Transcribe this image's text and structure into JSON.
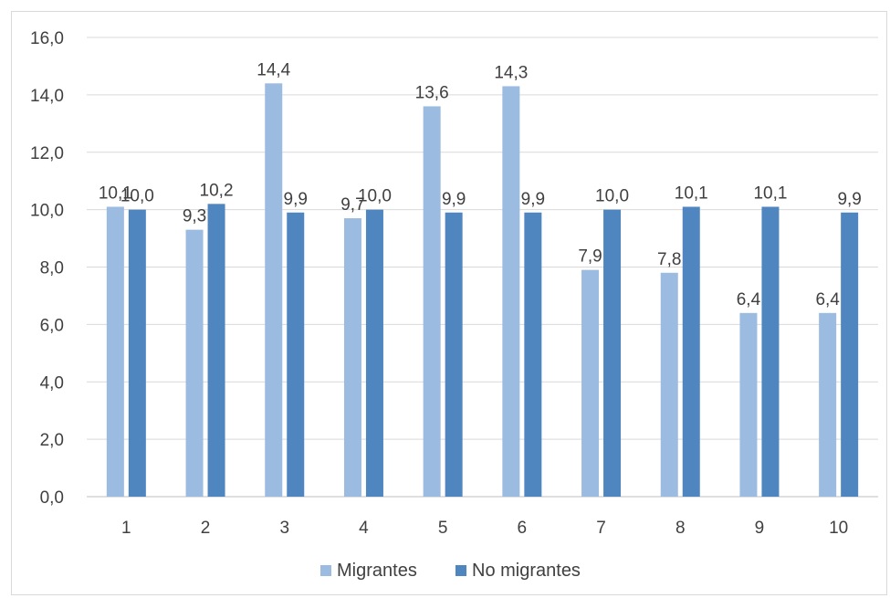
{
  "chart_data": {
    "type": "bar",
    "categories": [
      "1",
      "2",
      "3",
      "4",
      "5",
      "6",
      "7",
      "8",
      "9",
      "10"
    ],
    "series": [
      {
        "name": "Migrantes",
        "color": "#9bbbe0",
        "values": [
          10.1,
          9.3,
          14.4,
          9.7,
          13.6,
          14.3,
          7.9,
          7.8,
          6.4,
          6.4
        ],
        "labels": [
          "10,1",
          "9,3",
          "14,4",
          "9,7",
          "13,6",
          "14,3",
          "7,9",
          "7,8",
          "6,4",
          "6,4"
        ]
      },
      {
        "name": "No migrantes",
        "color": "#4f86c0",
        "values": [
          10.0,
          10.2,
          9.9,
          10.0,
          9.9,
          9.9,
          10.0,
          10.1,
          10.1,
          9.9
        ],
        "labels": [
          "10,0",
          "10,2",
          "9,9",
          "10,0",
          "9,9",
          "9,9",
          "10,0",
          "10,1",
          "10,1",
          "9,9"
        ]
      }
    ],
    "y_ticks": [
      "0,0",
      "2,0",
      "4,0",
      "6,0",
      "8,0",
      "10,0",
      "12,0",
      "14,0",
      "16,0"
    ],
    "ylim": [
      0,
      16
    ],
    "grid": true,
    "legend_position": "bottom",
    "title": "",
    "xlabel": "",
    "ylabel": ""
  }
}
